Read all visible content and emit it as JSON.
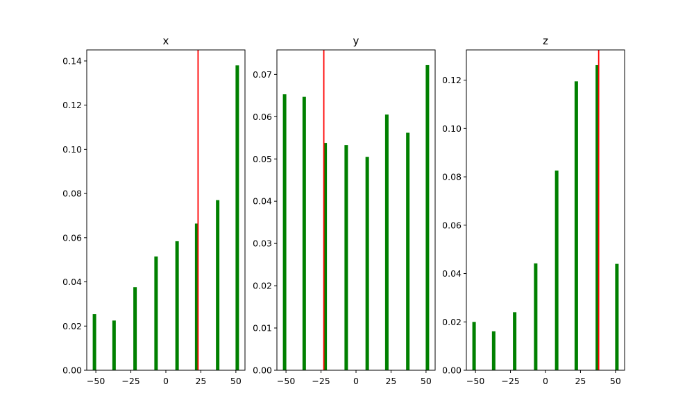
{
  "chart_data": [
    {
      "type": "bar",
      "title": "x",
      "x": [
        -51,
        -37,
        -22,
        -7,
        8,
        22,
        37,
        51
      ],
      "values": [
        0.0254,
        0.0225,
        0.0376,
        0.0515,
        0.0584,
        0.0664,
        0.077,
        0.138
      ],
      "bar_color": "#008000",
      "vline": {
        "x": 23,
        "color": "#ff0000"
      },
      "xlim": [
        -56.5,
        56.5
      ],
      "ylim": [
        0,
        0.145
      ],
      "xticks": [
        -50,
        -25,
        0,
        25,
        50
      ],
      "yticks": [
        0.0,
        0.02,
        0.04,
        0.06,
        0.08,
        0.1,
        0.12,
        0.14
      ],
      "ytick_decimals": 2,
      "grid": false
    },
    {
      "type": "bar",
      "title": "y",
      "x": [
        -51,
        -37,
        -22,
        -7,
        8,
        22,
        37,
        51
      ],
      "values": [
        0.0653,
        0.0647,
        0.0538,
        0.0533,
        0.0505,
        0.0605,
        0.0562,
        0.0722
      ],
      "bar_color": "#008000",
      "vline": {
        "x": -23,
        "color": "#ff0000"
      },
      "xlim": [
        -56.5,
        56.5
      ],
      "ylim": [
        0,
        0.0758
      ],
      "xticks": [
        -50,
        -25,
        0,
        25,
        50
      ],
      "yticks": [
        0.0,
        0.01,
        0.02,
        0.03,
        0.04,
        0.05,
        0.06,
        0.07
      ],
      "ytick_decimals": 2,
      "grid": false
    },
    {
      "type": "bar",
      "title": "z",
      "x": [
        -51,
        -37,
        -22,
        -7,
        8,
        22,
        37,
        51
      ],
      "values": [
        0.02,
        0.0161,
        0.024,
        0.0442,
        0.0826,
        0.1195,
        0.1262,
        0.044
      ],
      "bar_color": "#008000",
      "vline": {
        "x": 38,
        "color": "#ff0000"
      },
      "xlim": [
        -56.5,
        56.5
      ],
      "ylim": [
        0,
        0.1325
      ],
      "xticks": [
        -50,
        -25,
        0,
        25,
        50
      ],
      "yticks": [
        0.0,
        0.02,
        0.04,
        0.06,
        0.08,
        0.1,
        0.12
      ],
      "ytick_decimals": 2,
      "grid": false
    }
  ]
}
